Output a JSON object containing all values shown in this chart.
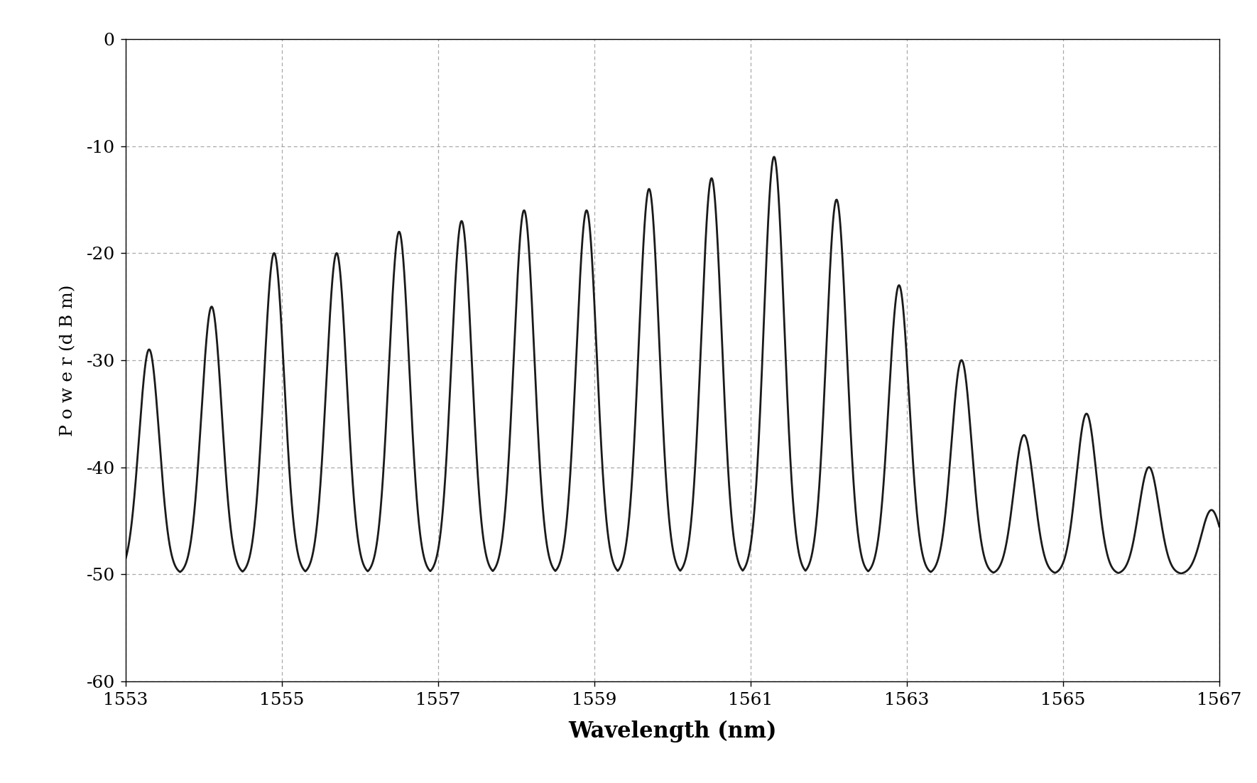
{
  "x_min": 1553,
  "x_max": 1567,
  "y_min": -60,
  "y_max": 0,
  "xlabel": "Wavelength (nm)",
  "ylabel": "P o w e r (d B m)",
  "x_ticks": [
    1553,
    1555,
    1557,
    1559,
    1561,
    1563,
    1565,
    1567
  ],
  "y_ticks": [
    0,
    -10,
    -20,
    -30,
    -40,
    -50,
    -60
  ],
  "line_color": "#1a1a1a",
  "background_color": "#ffffff",
  "grid_color": "#999999",
  "fig_bg_color": "#ffffff",
  "xlabel_fontsize": 22,
  "ylabel_fontsize": 18,
  "tick_fontsize": 18,
  "line_width": 2.0,
  "channel_peaks_wavelength": [
    1553.3,
    1554.1,
    1554.9,
    1555.7,
    1556.5,
    1557.3,
    1558.1,
    1558.9,
    1559.7,
    1560.5,
    1561.3,
    1562.1,
    1562.9,
    1563.7,
    1564.5,
    1565.3,
    1566.1,
    1566.9
  ],
  "channel_peaks_power": [
    -29,
    -25,
    -20,
    -20,
    -18,
    -17,
    -16,
    -16,
    -14,
    -13,
    -11,
    -15,
    -23,
    -30,
    -37,
    -35,
    -40,
    -44
  ],
  "noise_floor": -50,
  "channel_sigma": 0.13
}
